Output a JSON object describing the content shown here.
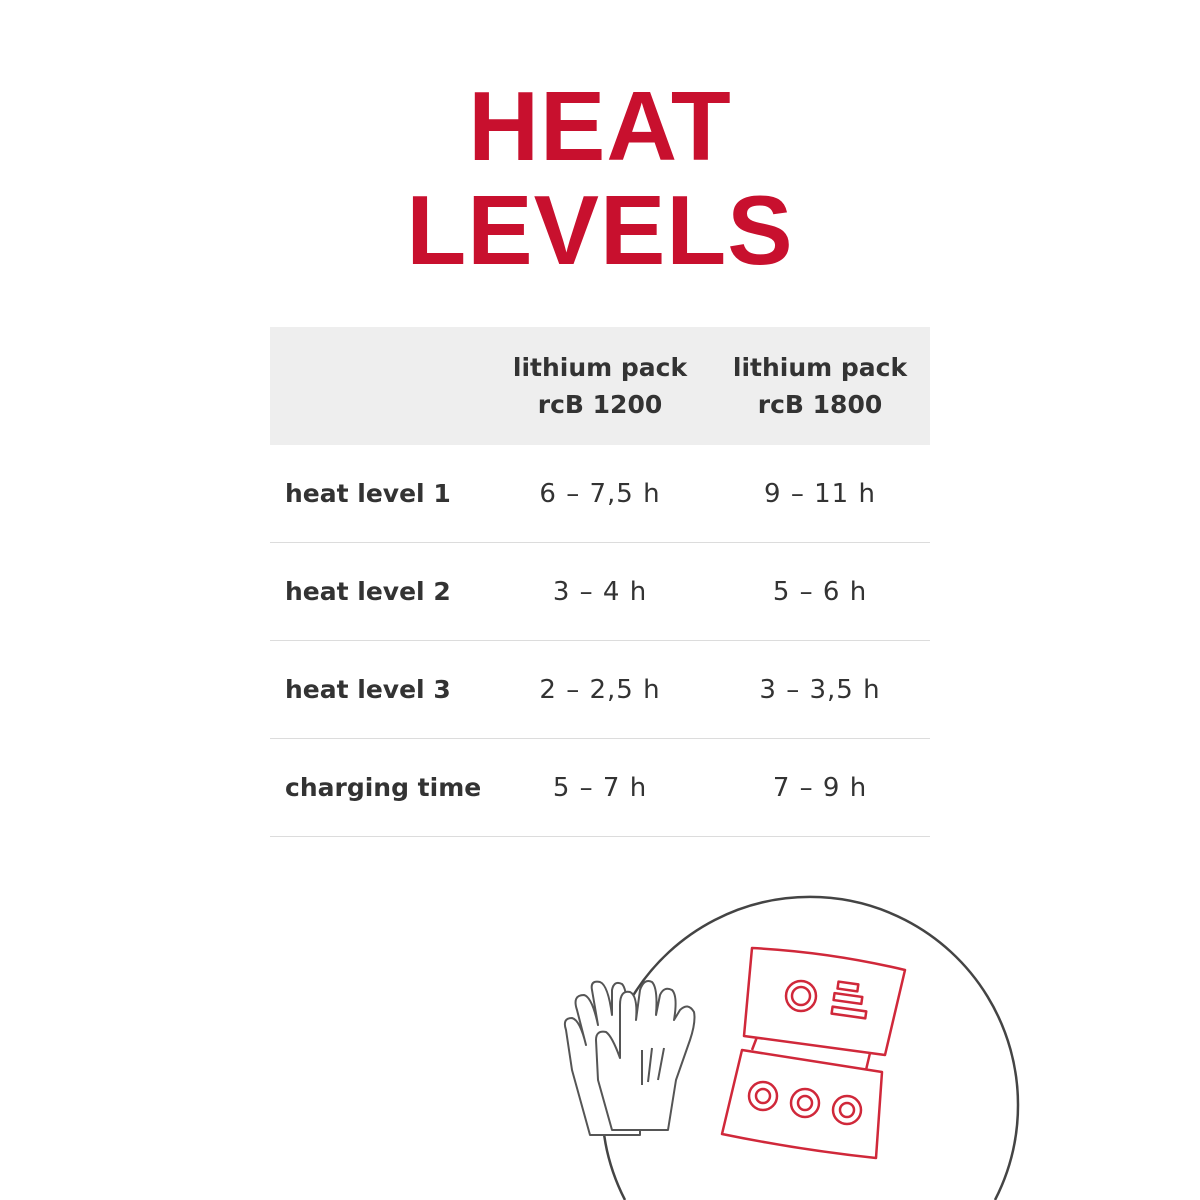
{
  "title": {
    "line1": "HEAT",
    "line2": "LEVELS"
  },
  "colors": {
    "accent": "#c8102e",
    "text": "#333333",
    "header_bg": "#eeeeee"
  },
  "table": {
    "headers": [
      {
        "line1": "",
        "line2": ""
      },
      {
        "line1": "lithium pack",
        "line2": "rcB 1200"
      },
      {
        "line1": "lithium pack",
        "line2": "rcB 1800"
      }
    ],
    "rows": [
      {
        "label": "heat level 1",
        "rcb1200": "6 – 7,5 h",
        "rcb1800": "9 – 11 h"
      },
      {
        "label": "heat level 2",
        "rcb1200": "3 – 4 h",
        "rcb1800": "5 – 6 h"
      },
      {
        "label": "heat level 3",
        "rcb1200": "2 – 2,5 h",
        "rcb1800": "3 – 3,5 h"
      },
      {
        "label": "charging time",
        "rcb1200": "5 – 7 h",
        "rcb1800": "7 – 9 h"
      }
    ]
  },
  "illustration": {
    "icons": [
      "gloves-icon",
      "battery-pack-icon"
    ]
  }
}
